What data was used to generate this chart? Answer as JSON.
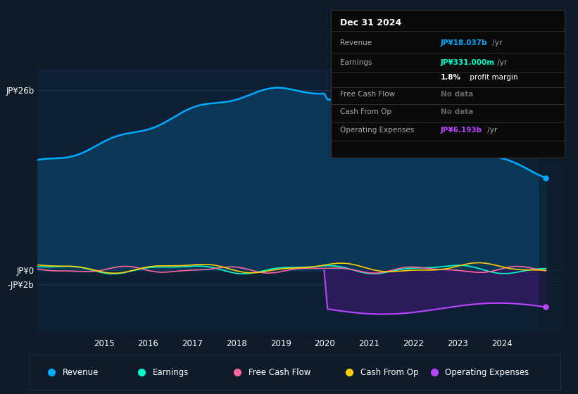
{
  "bg_color": "#0d1b2a",
  "plot_bg_color": "#0d2035",
  "grid_color": "#1e3a4a",
  "ylabel_jp26b": "JP¥26b",
  "ylabel_jp0": "JP¥0",
  "ylabel_jpm2b": "-JP¥2b",
  "x_ticks": [
    2015,
    2016,
    2017,
    2018,
    2019,
    2020,
    2021,
    2022,
    2023,
    2024
  ],
  "revenue_color": "#00aaff",
  "earnings_color": "#00ffcc",
  "fcf_color": "#ff6699",
  "cashfromop_color": "#ffcc00",
  "opex_color": "#bb44ff",
  "rev_fill_color": "#0a3a5c",
  "opex_fill_color": "#2d1b5e",
  "legend_items": [
    {
      "label": "Revenue",
      "color": "#00aaff"
    },
    {
      "label": "Earnings",
      "color": "#00ffcc"
    },
    {
      "label": "Free Cash Flow",
      "color": "#ff6699"
    },
    {
      "label": "Cash From Op",
      "color": "#ffcc00"
    },
    {
      "label": "Operating Expenses",
      "color": "#bb44ff"
    }
  ],
  "info_box": {
    "date": "Dec 31 2024",
    "revenue_val": "JP¥18.037b",
    "revenue_unit": "/yr",
    "earnings_val": "JP¥331.000m",
    "earnings_unit": "/yr",
    "profit_pct": "1.8%",
    "profit_label": " profit margin",
    "fcf": "No data",
    "cashfromop": "No data",
    "opex_val": "JP¥6.193b",
    "opex_unit": "/yr"
  }
}
